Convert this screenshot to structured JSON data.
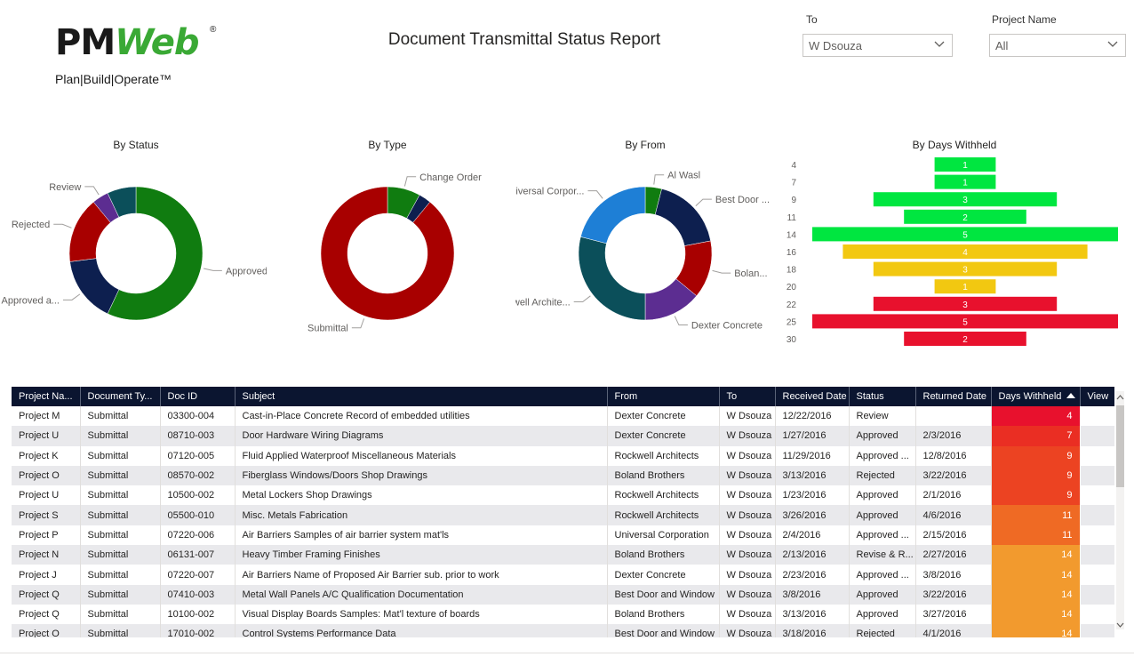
{
  "report": {
    "title": "Document Transmittal Status Report"
  },
  "logo": {
    "brand_a": "PM",
    "brand_b": "Web",
    "registered": "®",
    "tagline": "Plan|Build|Operate™"
  },
  "slicers": [
    {
      "label": "To",
      "value": "W Dsouza"
    },
    {
      "label": "Project Name",
      "value": "All"
    }
  ],
  "colors": {
    "green": "#107c10",
    "navy": "#0d1f4f",
    "red": "#a80000",
    "purple": "#5c2d91",
    "teal": "#0b4f5a",
    "blue": "#1e7fd6",
    "header_bg": "#0b1530"
  },
  "chart_data": [
    {
      "type": "donut",
      "title": "By Status",
      "slices": [
        {
          "label": "Approved",
          "value": 57,
          "color": "#107c10"
        },
        {
          "label": "Approved a...",
          "value": 16,
          "color": "#0d1f4f"
        },
        {
          "label": "Rejected",
          "value": 16,
          "color": "#a80000"
        },
        {
          "label": "Review",
          "value": 4,
          "color": "#5c2d91"
        },
        {
          "label": "",
          "value": 7,
          "color": "#0b4f5a"
        }
      ]
    },
    {
      "type": "donut",
      "title": "By Type",
      "slices": [
        {
          "label": "Change Order",
          "value": 8,
          "color": "#107c10"
        },
        {
          "label": "",
          "value": 3,
          "color": "#0d1f4f"
        },
        {
          "label": "Submittal",
          "value": 89,
          "color": "#a80000"
        }
      ]
    },
    {
      "type": "donut",
      "title": "By From",
      "slices": [
        {
          "label": "Al Wasl",
          "value": 4,
          "color": "#107c10"
        },
        {
          "label": "Best Door ...",
          "value": 18,
          "color": "#0d1f4f"
        },
        {
          "label": "Bolan...",
          "value": 14,
          "color": "#a80000"
        },
        {
          "label": "Dexter Concrete",
          "value": 14,
          "color": "#5c2d91"
        },
        {
          "label": "Rockwell Archite...",
          "value": 29,
          "color": "#0b4f5a"
        },
        {
          "label": "Universal Corpor...",
          "value": 21,
          "color": "#1e7fd6"
        }
      ]
    },
    {
      "type": "bar",
      "orientation": "horizontal-funnel",
      "title": "By Days Withheld",
      "categories": [
        "4",
        "7",
        "9",
        "11",
        "14",
        "16",
        "18",
        "20",
        "22",
        "25",
        "30"
      ],
      "values": [
        1,
        1,
        3,
        2,
        5,
        4,
        3,
        1,
        3,
        5,
        2
      ],
      "colors": [
        "#00e640",
        "#00e640",
        "#00e640",
        "#00e640",
        "#00e640",
        "#f2c811",
        "#f2c811",
        "#f2c811",
        "#e8112d",
        "#e8112d",
        "#e8112d"
      ]
    }
  ],
  "table": {
    "columns": [
      "Project Na...",
      "Document Ty...",
      "Doc ID",
      "Subject",
      "From",
      "To",
      "Received Date",
      "Status",
      "Returned Date",
      "Days Withheld",
      "View"
    ],
    "rows": [
      {
        "cells": [
          "Project M",
          "Submittal",
          "03300-004",
          "Cast-in-Place Concrete Record of embedded utilities",
          "Dexter Concrete",
          "W Dsouza",
          "12/22/2016",
          "Review",
          "",
          "4",
          ""
        ],
        "days_color": "#e8112d"
      },
      {
        "cells": [
          "Project U",
          "Submittal",
          "08710-003",
          "Door Hardware Wiring Diagrams",
          "Dexter Concrete",
          "W Dsouza",
          "1/27/2016",
          "Approved",
          "2/3/2016",
          "7",
          ""
        ],
        "days_color": "#ea2e23"
      },
      {
        "cells": [
          "Project K",
          "Submittal",
          "07120-005",
          "Fluid Applied Waterproof Miscellaneous Materials",
          "Rockwell Architects",
          "W Dsouza",
          "11/29/2016",
          "Approved ...",
          "12/8/2016",
          "9",
          ""
        ],
        "days_color": "#ec4322"
      },
      {
        "cells": [
          "Project O",
          "Submittal",
          "08570-002",
          "Fiberglass Windows/Doors Shop Drawings",
          "Boland Brothers",
          "W Dsouza",
          "3/13/2016",
          "Rejected",
          "3/22/2016",
          "9",
          ""
        ],
        "days_color": "#ec4322"
      },
      {
        "cells": [
          "Project U",
          "Submittal",
          "10500-002",
          "Metal Lockers Shop Drawings",
          "Rockwell Architects",
          "W Dsouza",
          "1/23/2016",
          "Approved",
          "2/1/2016",
          "9",
          ""
        ],
        "days_color": "#ec4322"
      },
      {
        "cells": [
          "Project S",
          "Submittal",
          "05500-010",
          "Misc. Metals Fabrication",
          "Rockwell Architects",
          "W Dsouza",
          "3/26/2016",
          "Approved",
          "4/6/2016",
          "11",
          ""
        ],
        "days_color": "#ef6a24"
      },
      {
        "cells": [
          "Project P",
          "Submittal",
          "07220-006",
          "Air Barriers Samples of air barrier system mat'ls",
          "Universal Corporation",
          "W Dsouza",
          "2/4/2016",
          "Approved ...",
          "2/15/2016",
          "11",
          ""
        ],
        "days_color": "#ef6a24"
      },
      {
        "cells": [
          "Project N",
          "Submittal",
          "06131-007",
          "Heavy Timber Framing Finishes",
          "Boland Brothers",
          "W Dsouza",
          "2/13/2016",
          "Revise & R...",
          "2/27/2016",
          "14",
          ""
        ],
        "days_color": "#f29a2e"
      },
      {
        "cells": [
          "Project J",
          "Submittal",
          "07220-007",
          "Air Barriers Name of Proposed Air Barrier sub. prior to work",
          "Dexter Concrete",
          "W Dsouza",
          "2/23/2016",
          "Approved ...",
          "3/8/2016",
          "14",
          ""
        ],
        "days_color": "#f29a2e"
      },
      {
        "cells": [
          "Project Q",
          "Submittal",
          "07410-003",
          "Metal Wall Panels A/C Qualification Documentation",
          "Best Door and Window",
          "W Dsouza",
          "3/8/2016",
          "Approved",
          "3/22/2016",
          "14",
          ""
        ],
        "days_color": "#f29a2e"
      },
      {
        "cells": [
          "Project Q",
          "Submittal",
          "10100-002",
          "Visual Display Boards Samples: Mat'l texture of boards",
          "Boland Brothers",
          "W Dsouza",
          "3/13/2016",
          "Approved",
          "3/27/2016",
          "14",
          ""
        ],
        "days_color": "#f29a2e"
      },
      {
        "cells": [
          "Project O",
          "Submittal",
          "17010-002",
          "Control Systems Performance Data",
          "Best Door and Window",
          "W Dsouza",
          "3/18/2016",
          "Rejected",
          "4/1/2016",
          "14",
          ""
        ],
        "days_color": "#f29a2e"
      }
    ]
  }
}
